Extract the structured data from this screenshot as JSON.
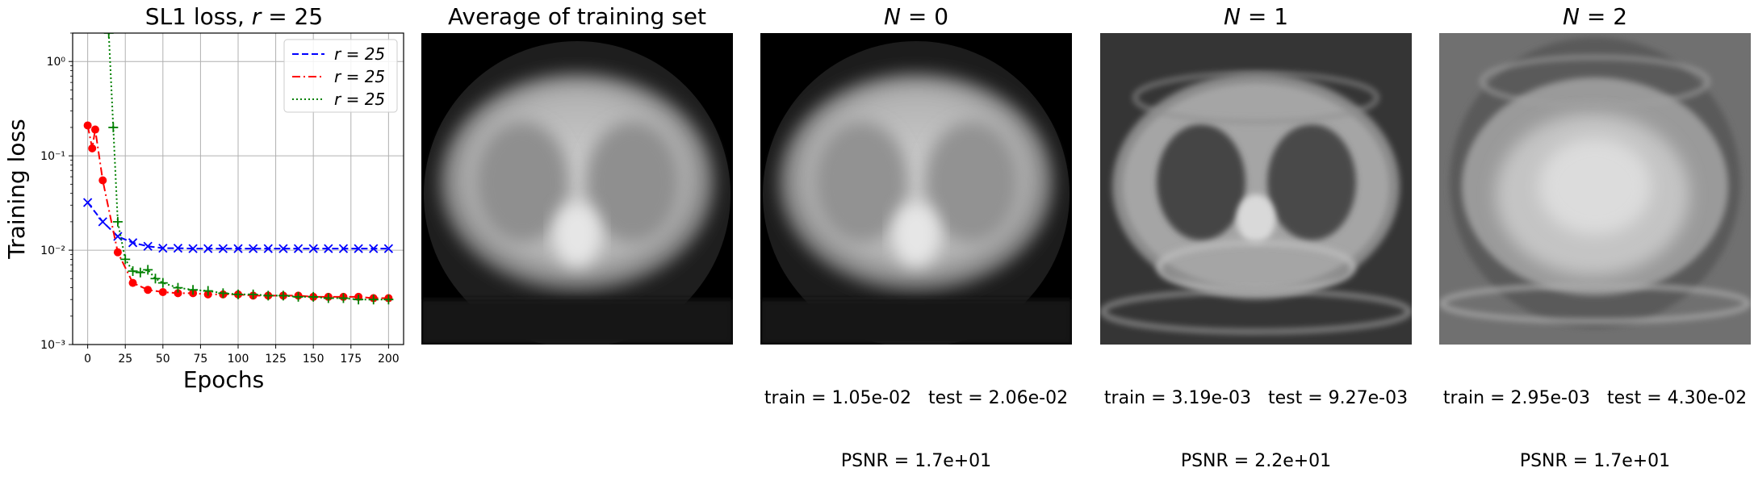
{
  "chart_data": {
    "type": "line",
    "title_prefix": "SL1 loss, ",
    "title_var": "r",
    "title_suffix": " = 25",
    "xlabel": "Epochs",
    "ylabel": "Training loss",
    "yscale": "log",
    "xlim": [
      -10,
      210
    ],
    "ylim": [
      0.001,
      2.0
    ],
    "grid": true,
    "legend_position": "top-right",
    "xticks": [
      0,
      25,
      50,
      75,
      100,
      125,
      150,
      175,
      200
    ],
    "ytick_labels": [
      "10⁻³",
      "10⁻²",
      "10⁻¹",
      "10⁰"
    ],
    "ytick_values": [
      0.001,
      0.01,
      0.1,
      1
    ],
    "series": [
      {
        "name": "r = 25",
        "color": "#0000ff",
        "linestyle": "dashed",
        "marker": "x",
        "x": [
          0,
          10,
          20,
          30,
          40,
          50,
          60,
          70,
          80,
          90,
          100,
          110,
          120,
          130,
          140,
          150,
          160,
          170,
          180,
          190,
          200
        ],
        "y": [
          0.032,
          0.02,
          0.014,
          0.012,
          0.011,
          0.0105,
          0.0105,
          0.0104,
          0.0104,
          0.0104,
          0.0104,
          0.0104,
          0.0104,
          0.0104,
          0.0104,
          0.0104,
          0.0104,
          0.0104,
          0.0104,
          0.0104,
          0.0104
        ]
      },
      {
        "name": "r = 25",
        "color": "#ff0000",
        "linestyle": "dashdot",
        "marker": "o",
        "x": [
          0,
          3,
          5,
          10,
          20,
          30,
          40,
          50,
          60,
          70,
          80,
          90,
          100,
          110,
          120,
          130,
          140,
          150,
          160,
          170,
          180,
          190,
          200
        ],
        "y": [
          0.21,
          0.12,
          0.19,
          0.055,
          0.0095,
          0.0045,
          0.0038,
          0.0036,
          0.0035,
          0.0035,
          0.0034,
          0.0034,
          0.0034,
          0.0033,
          0.0033,
          0.0033,
          0.0033,
          0.0032,
          0.0032,
          0.0032,
          0.0032,
          0.0031,
          0.0031
        ]
      },
      {
        "name": "r = 25",
        "color": "#008000",
        "linestyle": "dotted",
        "marker": "+",
        "x": [
          14,
          17,
          20,
          25,
          30,
          35,
          40,
          45,
          50,
          60,
          70,
          80,
          90,
          100,
          110,
          120,
          130,
          140,
          150,
          160,
          170,
          180,
          190,
          200
        ],
        "y": [
          2.0,
          0.2,
          0.02,
          0.008,
          0.006,
          0.0058,
          0.0062,
          0.005,
          0.0045,
          0.004,
          0.0038,
          0.0037,
          0.0035,
          0.0034,
          0.0034,
          0.0033,
          0.0033,
          0.0032,
          0.0032,
          0.0031,
          0.0031,
          0.003,
          0.003,
          0.003
        ]
      }
    ]
  },
  "panels": [
    {
      "title": "Average of training set",
      "image_style": "blurred-average",
      "caption_line1": "",
      "caption_line2": ""
    },
    {
      "title_var": "N",
      "title_suffix": " = 0",
      "image_style": "blurred-average",
      "caption_line1": "train = 1.05e-02   test = 2.06e-02",
      "caption_line2": "PSNR = 1.7e+01"
    },
    {
      "title_var": "N",
      "title_suffix": " = 1",
      "image_style": "ct-chest-grey",
      "caption_line1": "train = 3.19e-03   test = 9.27e-03",
      "caption_line2": "PSNR = 2.2e+01"
    },
    {
      "title_var": "N",
      "title_suffix": " = 2",
      "image_style": "ct-chest-light",
      "caption_line1": "train = 2.95e-03   test = 4.30e-02",
      "caption_line2": "PSNR = 1.7e+01"
    }
  ]
}
